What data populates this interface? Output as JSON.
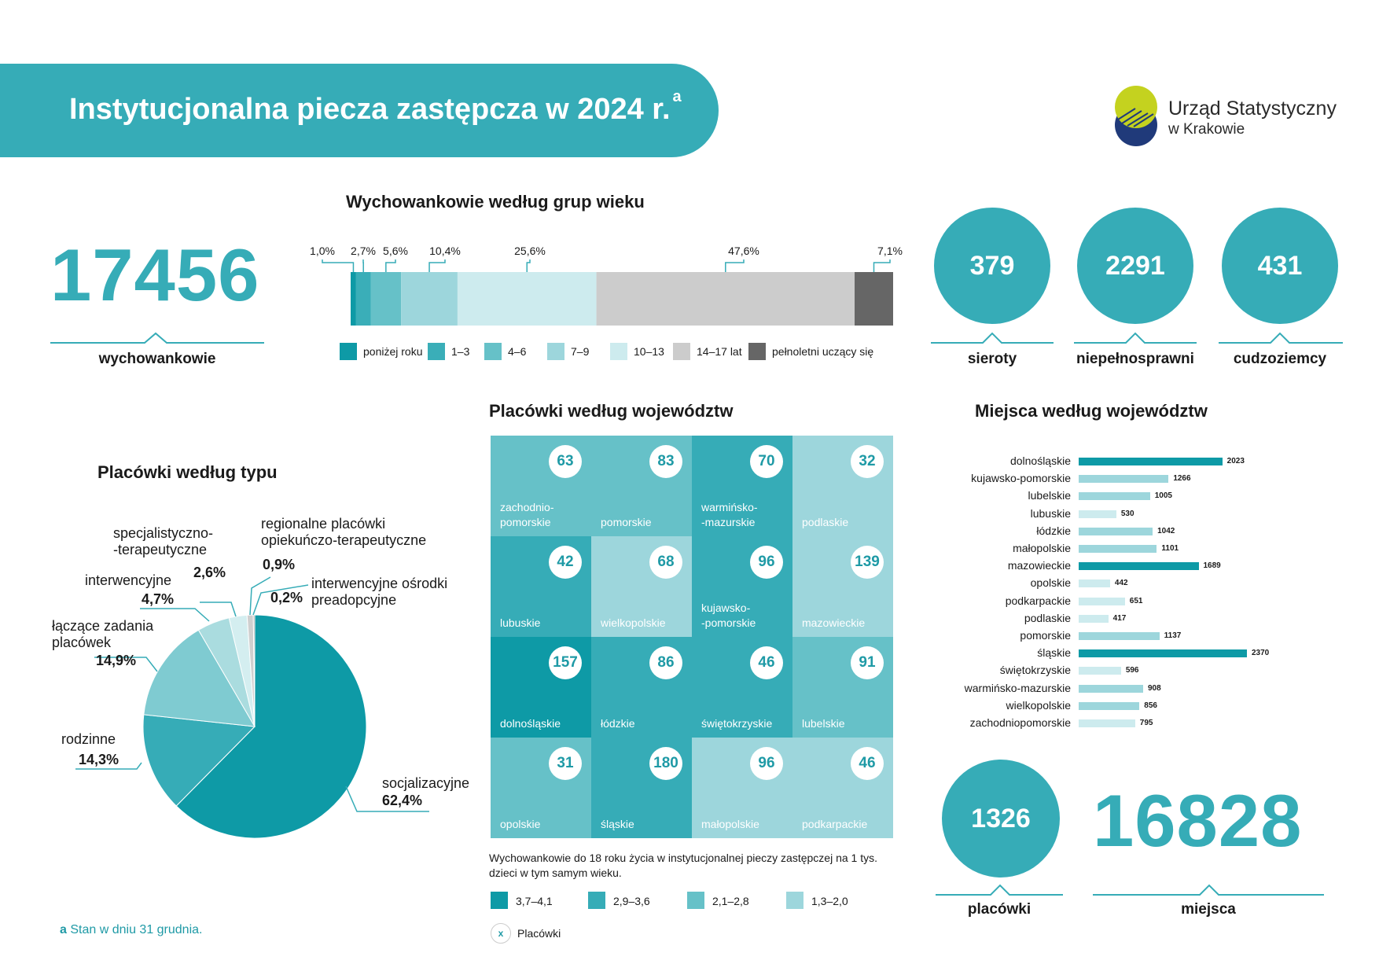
{
  "header": {
    "title": "Instytucjonalna piecza zastępcza w 2024 r.",
    "title_sup": "a"
  },
  "logo": {
    "line1": "Urząd Statystyczny",
    "line2": "w Krakowie"
  },
  "colors": {
    "accent": "#36acb7",
    "dark": "#0e9aa6",
    "navy": "#203a7a",
    "lime": "#c4d21f"
  },
  "kpis": {
    "wychowankowie": {
      "value": "17456",
      "label": "wychowankowie"
    },
    "sieroty": {
      "value": "379",
      "label": "sieroty"
    },
    "niepelnosprawni": {
      "value": "2291",
      "label": "niepełnosprawni"
    },
    "cudzoziemcy": {
      "value": "431",
      "label": "cudzoziemcy"
    },
    "placowki": {
      "value": "1326",
      "label": "placówki"
    },
    "miejsca": {
      "value": "16828",
      "label": "miejsca"
    }
  },
  "age_chart": {
    "title": "Wychowankowie według grup wieku",
    "legend": [
      "poniżej roku",
      "1–3",
      "4–6",
      "7–9",
      "10–13",
      "14–17 lat",
      "pełnoletni uczący się"
    ]
  },
  "map": {
    "title": "Placówki według województw",
    "note": "Wychowankowie do 18 roku życia w instytucjonalnej pieczy zastępczej na 1 tys. dzieci w tym samym wieku.",
    "legend": [
      "3,7–4,1",
      "2,9–3,6",
      "2,1–2,8",
      "1,3–2,0"
    ],
    "marker_legend": {
      "symbol": "x",
      "label": "Placówki"
    }
  },
  "pie_title": "Placówki według typu",
  "bars_title": "Miejsca według województw",
  "footnote": {
    "mark": "a",
    "text": "Stan w dniu 31 grudnia."
  },
  "chart_data": [
    {
      "type": "bar",
      "orientation": "stacked-horizontal",
      "title": "Wychowankowie według grup wieku",
      "categories": [
        "poniżej roku",
        "1–3",
        "4–6",
        "7–9",
        "10–13",
        "14–17 lat",
        "pełnoletni uczący się"
      ],
      "values": [
        1.0,
        2.7,
        5.6,
        10.4,
        25.6,
        47.6,
        7.1
      ],
      "labels": [
        "1,0%",
        "2,7%",
        "5,6%",
        "10,4%",
        "25,6%",
        "47,6%",
        "7,1%"
      ],
      "colors": [
        "#0e9aa6",
        "#3aaeb8",
        "#66c1c8",
        "#9dd6dc",
        "#cdebee",
        "#cccccc",
        "#666666"
      ]
    },
    {
      "type": "pie",
      "title": "Placówki według typu",
      "categories": [
        "socjalizacyjne",
        "rodzinne",
        "łączące zadania placówek",
        "interwencyjne",
        "specjalistyczno-terapeutyczne",
        "regionalne placówki opiekuńczo-terapeutyczne",
        "interwencyjne ośrodki preadopcyjne"
      ],
      "display_names": [
        "socjalizacyjne",
        "rodzinne",
        "łączące zadania\nplacówek",
        "interwencyjne",
        "specjalistyczno-\n-terapeutyczne",
        "regionalne placówki\nopiekuńczo-terapeutyczne",
        "interwencyjne ośrodki\npreadopcyjne"
      ],
      "values": [
        62.4,
        14.3,
        14.9,
        4.7,
        2.6,
        0.9,
        0.2
      ],
      "labels": [
        "62,4%",
        "14,3%",
        "14,9%",
        "4,7%",
        "2,6%",
        "0,9%",
        "0,2%"
      ],
      "colors": [
        "#0e9aa6",
        "#36acb7",
        "#7fcbd1",
        "#aadcdf",
        "#d4eef0",
        "#cfcfcf",
        "#9a9a9a"
      ]
    },
    {
      "type": "heatmap",
      "title": "Placówki według województw",
      "tiles": [
        {
          "name": "zachodnio-\npomorskie",
          "value": 63,
          "class": "2,1–2,8"
        },
        {
          "name": "pomorskie",
          "value": 83,
          "class": "2,1–2,8"
        },
        {
          "name": "warmińsko-\n-mazurskie",
          "value": 70,
          "class": "2,9–3,6"
        },
        {
          "name": "podlaskie",
          "value": 32,
          "class": "1,3–2,0"
        },
        {
          "name": "lubuskie",
          "value": 42,
          "class": "2,9–3,6"
        },
        {
          "name": "wielkopolskie",
          "value": 68,
          "class": "1,3–2,0"
        },
        {
          "name": "kujawsko-\n-pomorskie",
          "value": 96,
          "class": "2,9–3,6"
        },
        {
          "name": "mazowieckie",
          "value": 139,
          "class": "1,3–2,0"
        },
        {
          "name": "dolnośląskie",
          "value": 157,
          "class": "3,7–4,1"
        },
        {
          "name": "łódzkie",
          "value": 86,
          "class": "2,9–3,6"
        },
        {
          "name": "świętokrzyskie",
          "value": 46,
          "class": "2,9–3,6"
        },
        {
          "name": "lubelskie",
          "value": 91,
          "class": "2,1–2,8"
        },
        {
          "name": "opolskie",
          "value": 31,
          "class": "2,1–2,8"
        },
        {
          "name": "śląskie",
          "value": 180,
          "class": "2,9–3,6"
        },
        {
          "name": "małopolskie",
          "value": 96,
          "class": "1,3–2,0"
        },
        {
          "name": "podkarpackie",
          "value": 46,
          "class": "1,3–2,0"
        }
      ]
    },
    {
      "type": "bar",
      "orientation": "horizontal",
      "title": "Miejsca według województw",
      "categories": [
        "dolnośląskie",
        "kujawsko-pomorskie",
        "lubelskie",
        "lubuskie",
        "łódzkie",
        "małopolskie",
        "mazowieckie",
        "opolskie",
        "podkarpackie",
        "podlaskie",
        "pomorskie",
        "śląskie",
        "świętokrzyskie",
        "warmińsko-mazurskie",
        "wielkopolskie",
        "zachodniopomorskie"
      ],
      "values": [
        2023,
        1266,
        1005,
        530,
        1042,
        1101,
        1689,
        442,
        651,
        417,
        1137,
        2370,
        596,
        908,
        856,
        795
      ],
      "xlim": [
        0,
        2370
      ]
    }
  ]
}
